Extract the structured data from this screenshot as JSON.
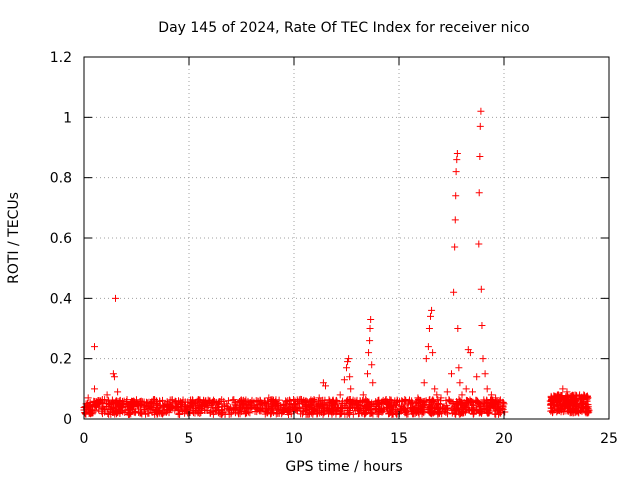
{
  "colors": {
    "series": "#ff0000",
    "grid": "#a0a0a0",
    "axis": "#000000",
    "background": "#ffffff"
  },
  "chart_data": {
    "type": "scatter",
    "title": "Day 145 of 2024, Rate Of TEC Index for receiver nico",
    "xlabel": "GPS time / hours",
    "ylabel": "ROTI / TECUs",
    "xlim": [
      0,
      25
    ],
    "ylim": [
      0,
      1.2
    ],
    "xticks": [
      0,
      5,
      10,
      15,
      20,
      25
    ],
    "yticks": [
      0,
      0.2,
      0.4,
      0.6,
      0.8,
      1.0,
      1.2
    ],
    "xtick_labels": [
      "0",
      "5",
      "10",
      "15",
      "20",
      "25"
    ],
    "ytick_labels": [
      "0",
      "0.2",
      "0.4",
      "0.6",
      "0.8",
      "1",
      "1.2"
    ],
    "grid": true,
    "grid_style": "dotted",
    "marker": "plus",
    "series": [
      {
        "points": [
          [
            0.0,
            0.03
          ],
          [
            0.1,
            0.05
          ],
          [
            0.2,
            0.07
          ],
          [
            0.3,
            0.04
          ],
          [
            0.4,
            0.02
          ],
          [
            0.5,
            0.24
          ],
          [
            0.5,
            0.1
          ],
          [
            0.6,
            0.05
          ],
          [
            0.7,
            0.03
          ],
          [
            0.8,
            0.06
          ],
          [
            0.9,
            0.04
          ],
          [
            1.0,
            0.03
          ],
          [
            1.1,
            0.08
          ],
          [
            1.2,
            0.05
          ],
          [
            1.3,
            0.04
          ],
          [
            1.4,
            0.15
          ],
          [
            1.45,
            0.14
          ],
          [
            1.5,
            0.4
          ],
          [
            1.6,
            0.09
          ],
          [
            1.7,
            0.06
          ],
          [
            1.8,
            0.04
          ],
          [
            2.0,
            0.05
          ],
          [
            2.3,
            0.03
          ],
          [
            2.6,
            0.05
          ],
          [
            3.0,
            0.04
          ],
          [
            3.3,
            0.05
          ],
          [
            3.6,
            0.06
          ],
          [
            4.0,
            0.04
          ],
          [
            4.4,
            0.05
          ],
          [
            4.8,
            0.03
          ],
          [
            5.2,
            0.05
          ],
          [
            5.6,
            0.04
          ],
          [
            6.0,
            0.06
          ],
          [
            6.4,
            0.04
          ],
          [
            6.8,
            0.05
          ],
          [
            7.2,
            0.03
          ],
          [
            7.6,
            0.05
          ],
          [
            8.0,
            0.04
          ],
          [
            8.4,
            0.06
          ],
          [
            8.8,
            0.07
          ],
          [
            9.2,
            0.05
          ],
          [
            9.6,
            0.06
          ],
          [
            10.0,
            0.04
          ],
          [
            10.4,
            0.05
          ],
          [
            10.8,
            0.06
          ],
          [
            11.2,
            0.07
          ],
          [
            11.4,
            0.12
          ],
          [
            11.5,
            0.11
          ],
          [
            11.8,
            0.05
          ],
          [
            12.0,
            0.06
          ],
          [
            12.2,
            0.08
          ],
          [
            12.4,
            0.13
          ],
          [
            12.5,
            0.17
          ],
          [
            12.55,
            0.19
          ],
          [
            12.6,
            0.2
          ],
          [
            12.65,
            0.14
          ],
          [
            12.7,
            0.1
          ],
          [
            13.0,
            0.06
          ],
          [
            13.3,
            0.08
          ],
          [
            13.5,
            0.15
          ],
          [
            13.55,
            0.22
          ],
          [
            13.6,
            0.26
          ],
          [
            13.62,
            0.3
          ],
          [
            13.65,
            0.33
          ],
          [
            13.7,
            0.18
          ],
          [
            13.75,
            0.12
          ],
          [
            14.0,
            0.06
          ],
          [
            14.4,
            0.05
          ],
          [
            14.8,
            0.06
          ],
          [
            15.2,
            0.04
          ],
          [
            15.6,
            0.06
          ],
          [
            15.9,
            0.07
          ],
          [
            16.2,
            0.12
          ],
          [
            16.3,
            0.2
          ],
          [
            16.4,
            0.24
          ],
          [
            16.45,
            0.3
          ],
          [
            16.5,
            0.34
          ],
          [
            16.55,
            0.36
          ],
          [
            16.6,
            0.22
          ],
          [
            16.7,
            0.1
          ],
          [
            16.8,
            0.08
          ],
          [
            17.0,
            0.07
          ],
          [
            17.3,
            0.09
          ],
          [
            17.5,
            0.15
          ],
          [
            17.6,
            0.42
          ],
          [
            17.65,
            0.57
          ],
          [
            17.68,
            0.66
          ],
          [
            17.7,
            0.74
          ],
          [
            17.72,
            0.82
          ],
          [
            17.75,
            0.86
          ],
          [
            17.78,
            0.88
          ],
          [
            17.8,
            0.3
          ],
          [
            17.85,
            0.17
          ],
          [
            17.9,
            0.12
          ],
          [
            18.0,
            0.08
          ],
          [
            18.2,
            0.1
          ],
          [
            18.3,
            0.23
          ],
          [
            18.4,
            0.22
          ],
          [
            18.5,
            0.09
          ],
          [
            18.7,
            0.14
          ],
          [
            18.8,
            0.58
          ],
          [
            18.82,
            0.75
          ],
          [
            18.85,
            0.87
          ],
          [
            18.87,
            0.97
          ],
          [
            18.9,
            1.02
          ],
          [
            18.92,
            0.43
          ],
          [
            18.95,
            0.31
          ],
          [
            19.0,
            0.2
          ],
          [
            19.1,
            0.15
          ],
          [
            19.2,
            0.1
          ],
          [
            19.4,
            0.08
          ],
          [
            19.6,
            0.07
          ],
          [
            19.8,
            0.06
          ],
          [
            20.0,
            0.05
          ],
          [
            22.3,
            0.06
          ],
          [
            22.4,
            0.04
          ],
          [
            22.6,
            0.08
          ],
          [
            22.8,
            0.1
          ],
          [
            23.0,
            0.09
          ],
          [
            23.2,
            0.07
          ],
          [
            23.4,
            0.06
          ],
          [
            23.6,
            0.08
          ],
          [
            23.8,
            0.05
          ],
          [
            24.0,
            0.07
          ]
        ],
        "bands": [
          {
            "x_start": 0.0,
            "x_end": 20.05,
            "y_low": 0.015,
            "y_high": 0.065,
            "count": 1300
          },
          {
            "x_start": 22.2,
            "x_end": 24.05,
            "y_low": 0.02,
            "y_high": 0.08,
            "count": 240
          }
        ]
      }
    ]
  }
}
